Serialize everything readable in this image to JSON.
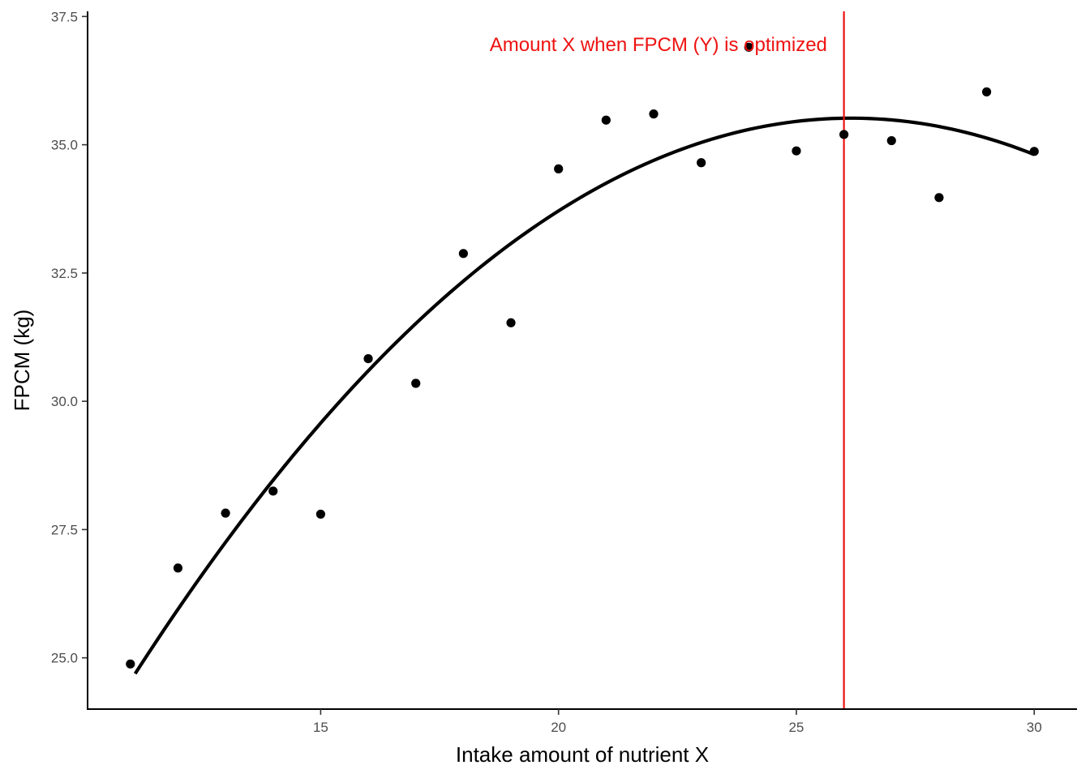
{
  "chart_data": {
    "type": "scatter",
    "title": "",
    "xlabel": "Intake amount of nutrient X",
    "ylabel": "FPCM (kg)",
    "xlim": [
      10.1,
      30.9
    ],
    "ylim": [
      24.0,
      37.6
    ],
    "x_ticks": [
      15,
      20,
      25,
      30
    ],
    "x_tick_labels": [
      "15",
      "20",
      "25",
      "30"
    ],
    "y_ticks": [
      25.0,
      27.5,
      30.0,
      32.5,
      35.0,
      37.5
    ],
    "y_tick_labels": [
      "25.0",
      "27.5",
      "30.0",
      "32.5",
      "35.0",
      "37.5"
    ],
    "grid": false,
    "points": {
      "x": [
        11,
        12,
        13,
        14,
        15,
        16,
        17,
        18,
        19,
        20,
        21,
        22,
        23,
        24,
        25,
        26,
        27,
        28,
        29,
        30
      ],
      "y": [
        24.88,
        26.75,
        27.82,
        28.25,
        27.8,
        30.83,
        30.35,
        32.88,
        31.53,
        34.53,
        35.48,
        35.6,
        34.65,
        36.9,
        34.88,
        35.2,
        35.08,
        33.97,
        36.03,
        34.87
      ]
    },
    "fit_curve": {
      "type": "quadratic",
      "x_range": [
        11.1,
        30
      ],
      "coefficients": {
        "a": -0.0478,
        "b": 2.5,
        "c": 2.83
      },
      "color": "#000000"
    },
    "vline": {
      "x": 26,
      "color": "#ee1111"
    },
    "annotation": {
      "text": "Amount X when FPCM (Y) is optimized",
      "x": 22.1,
      "y": 36.95,
      "color": "#ee1111"
    }
  }
}
